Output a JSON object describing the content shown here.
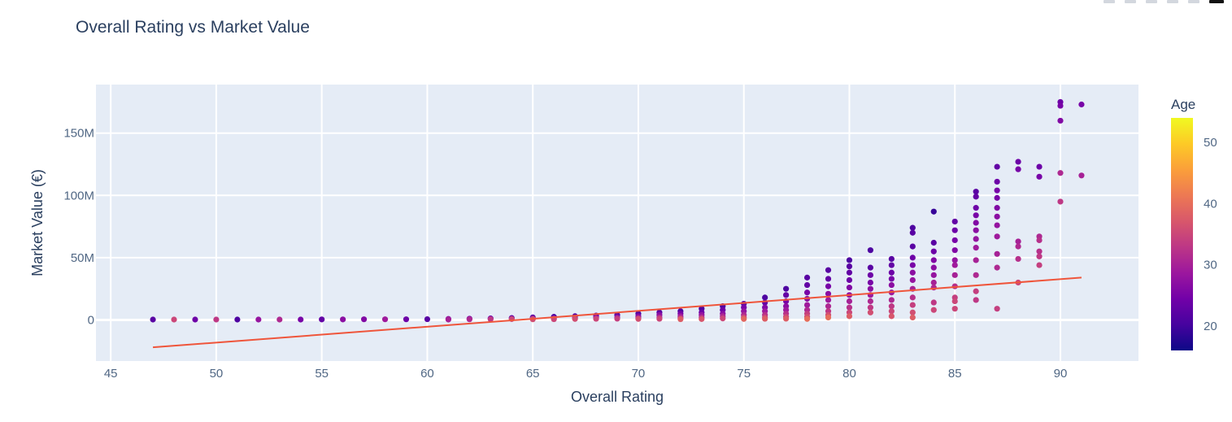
{
  "chart_data": {
    "type": "scatter",
    "title": "Overall Rating vs Market Value",
    "xlabel": "Overall Rating",
    "ylabel": "Market Value (€)",
    "xlim": [
      44.3,
      93.7
    ],
    "ylim": [
      -33000000,
      189000000
    ],
    "x_ticks": [
      45,
      50,
      55,
      60,
      65,
      70,
      75,
      80,
      85,
      90
    ],
    "y_ticks": [
      {
        "value": 0,
        "label": "0"
      },
      {
        "value": 50000000,
        "label": "50M"
      },
      {
        "value": 100000000,
        "label": "100M"
      },
      {
        "value": 150000000,
        "label": "150M"
      }
    ],
    "grid": true,
    "colorscale": {
      "title": "Age",
      "range": [
        16,
        54
      ],
      "ticks": [
        20,
        30,
        40,
        50
      ],
      "stops": [
        "#0d0887",
        "#46039f",
        "#7201a8",
        "#9c179e",
        "#bd3786",
        "#d8576b",
        "#ed7953",
        "#fb9f3a",
        "#fdca26",
        "#f0f921"
      ]
    },
    "trendline": {
      "color": "#ef553b",
      "points": [
        [
          47,
          -22000000
        ],
        [
          91,
          34000000
        ]
      ]
    },
    "points": [
      [
        47,
        300000,
        22
      ],
      [
        48,
        300000,
        35
      ],
      [
        49,
        300000,
        24
      ],
      [
        50,
        300000,
        33
      ],
      [
        51,
        300000,
        21
      ],
      [
        52,
        300000,
        28
      ],
      [
        53,
        300000,
        31
      ],
      [
        54,
        300000,
        25
      ],
      [
        55,
        400000,
        23
      ],
      [
        56,
        400000,
        27
      ],
      [
        57,
        500000,
        26
      ],
      [
        58,
        500000,
        29
      ],
      [
        59,
        500000,
        24
      ],
      [
        60,
        600000,
        22
      ],
      [
        61,
        800000,
        27
      ],
      [
        61,
        300000,
        30
      ],
      [
        62,
        1000000,
        25
      ],
      [
        62,
        500000,
        31
      ],
      [
        63,
        1200000,
        24
      ],
      [
        63,
        600000,
        33
      ],
      [
        64,
        1500000,
        23
      ],
      [
        64,
        700000,
        35
      ],
      [
        65,
        2000000,
        22
      ],
      [
        65,
        1000000,
        31
      ],
      [
        65,
        500000,
        36
      ],
      [
        66,
        2500000,
        21
      ],
      [
        66,
        1200000,
        30
      ],
      [
        66,
        600000,
        35
      ],
      [
        67,
        3000000,
        22
      ],
      [
        67,
        1500000,
        29
      ],
      [
        67,
        800000,
        36
      ],
      [
        68,
        3500000,
        23
      ],
      [
        68,
        1800000,
        28
      ],
      [
        68,
        900000,
        35
      ],
      [
        69,
        4000000,
        22
      ],
      [
        69,
        2000000,
        28
      ],
      [
        69,
        1000000,
        34
      ],
      [
        70,
        5000000,
        21
      ],
      [
        70,
        3000000,
        26
      ],
      [
        70,
        1500000,
        31
      ],
      [
        70,
        800000,
        36
      ],
      [
        71,
        6000000,
        22
      ],
      [
        71,
        4000000,
        27
      ],
      [
        71,
        2000000,
        31
      ],
      [
        71,
        900000,
        35
      ],
      [
        72,
        7000000,
        21
      ],
      [
        72,
        5000000,
        25
      ],
      [
        72,
        3000000,
        29
      ],
      [
        72,
        1500000,
        33
      ],
      [
        72,
        600000,
        38
      ],
      [
        73,
        9000000,
        21
      ],
      [
        73,
        6000000,
        24
      ],
      [
        73,
        4000000,
        28
      ],
      [
        73,
        2000000,
        32
      ],
      [
        73,
        700000,
        37
      ],
      [
        74,
        11000000,
        21
      ],
      [
        74,
        8000000,
        24
      ],
      [
        74,
        5000000,
        27
      ],
      [
        74,
        3000000,
        31
      ],
      [
        74,
        1200000,
        35
      ],
      [
        75,
        13000000,
        22
      ],
      [
        75,
        10000000,
        25
      ],
      [
        75,
        7000000,
        28
      ],
      [
        75,
        4000000,
        31
      ],
      [
        75,
        2000000,
        35
      ],
      [
        75,
        800000,
        39
      ],
      [
        76,
        18000000,
        21
      ],
      [
        76,
        14000000,
        23
      ],
      [
        76,
        10000000,
        26
      ],
      [
        76,
        7000000,
        29
      ],
      [
        76,
        4000000,
        32
      ],
      [
        76,
        2000000,
        35
      ],
      [
        76,
        900000,
        38
      ],
      [
        77,
        25000000,
        21
      ],
      [
        77,
        20000000,
        23
      ],
      [
        77,
        15000000,
        25
      ],
      [
        77,
        11000000,
        27
      ],
      [
        77,
        8000000,
        29
      ],
      [
        77,
        5000000,
        32
      ],
      [
        77,
        2500000,
        35
      ],
      [
        77,
        1000000,
        38
      ],
      [
        78,
        34000000,
        22
      ],
      [
        78,
        28000000,
        23
      ],
      [
        78,
        22000000,
        25
      ],
      [
        78,
        17000000,
        27
      ],
      [
        78,
        12000000,
        29
      ],
      [
        78,
        8000000,
        31
      ],
      [
        78,
        5000000,
        34
      ],
      [
        78,
        2500000,
        36
      ],
      [
        78,
        800000,
        40
      ],
      [
        79,
        40000000,
        22
      ],
      [
        79,
        33000000,
        23
      ],
      [
        79,
        27000000,
        25
      ],
      [
        79,
        21000000,
        27
      ],
      [
        79,
        16000000,
        29
      ],
      [
        79,
        11000000,
        31
      ],
      [
        79,
        7000000,
        33
      ],
      [
        79,
        4000000,
        36
      ],
      [
        79,
        2000000,
        40
      ],
      [
        80,
        48000000,
        21
      ],
      [
        80,
        43000000,
        22
      ],
      [
        80,
        38000000,
        23
      ],
      [
        80,
        32000000,
        24
      ],
      [
        80,
        26000000,
        26
      ],
      [
        80,
        20000000,
        28
      ],
      [
        80,
        15000000,
        30
      ],
      [
        80,
        10000000,
        32
      ],
      [
        80,
        6000000,
        35
      ],
      [
        80,
        3000000,
        38
      ],
      [
        81,
        56000000,
        21
      ],
      [
        81,
        42000000,
        22
      ],
      [
        81,
        36000000,
        24
      ],
      [
        81,
        30000000,
        25
      ],
      [
        81,
        25000000,
        27
      ],
      [
        81,
        20000000,
        29
      ],
      [
        81,
        15000000,
        31
      ],
      [
        81,
        10000000,
        33
      ],
      [
        81,
        6000000,
        36
      ],
      [
        82,
        49000000,
        22
      ],
      [
        82,
        44000000,
        23
      ],
      [
        82,
        38000000,
        24
      ],
      [
        82,
        33000000,
        25
      ],
      [
        82,
        28000000,
        27
      ],
      [
        82,
        22000000,
        29
      ],
      [
        82,
        16000000,
        31
      ],
      [
        82,
        11000000,
        33
      ],
      [
        82,
        7000000,
        35
      ],
      [
        82,
        3000000,
        37
      ],
      [
        83,
        74000000,
        21
      ],
      [
        83,
        70000000,
        22
      ],
      [
        83,
        59000000,
        22
      ],
      [
        83,
        50000000,
        24
      ],
      [
        83,
        44000000,
        25
      ],
      [
        83,
        38000000,
        27
      ],
      [
        83,
        32000000,
        28
      ],
      [
        83,
        25000000,
        30
      ],
      [
        83,
        18000000,
        32
      ],
      [
        83,
        12000000,
        34
      ],
      [
        83,
        6000000,
        36
      ],
      [
        83,
        2000000,
        38
      ],
      [
        84,
        87000000,
        19
      ],
      [
        84,
        62000000,
        22
      ],
      [
        84,
        55000000,
        24
      ],
      [
        84,
        48000000,
        26
      ],
      [
        84,
        42000000,
        27
      ],
      [
        84,
        36000000,
        28
      ],
      [
        84,
        30000000,
        30
      ],
      [
        84,
        26000000,
        31
      ],
      [
        84,
        14000000,
        33
      ],
      [
        84,
        8000000,
        35
      ],
      [
        85,
        79000000,
        23
      ],
      [
        85,
        72000000,
        24
      ],
      [
        85,
        64000000,
        25
      ],
      [
        85,
        56000000,
        26
      ],
      [
        85,
        48000000,
        28
      ],
      [
        85,
        44000000,
        29
      ],
      [
        85,
        36000000,
        30
      ],
      [
        85,
        27000000,
        32
      ],
      [
        85,
        18000000,
        34
      ],
      [
        85,
        15000000,
        35
      ],
      [
        85,
        9000000,
        35
      ],
      [
        86,
        103000000,
        22
      ],
      [
        86,
        99000000,
        23
      ],
      [
        86,
        90000000,
        24
      ],
      [
        86,
        84000000,
        25
      ],
      [
        86,
        78000000,
        26
      ],
      [
        86,
        72000000,
        27
      ],
      [
        86,
        65000000,
        28
      ],
      [
        86,
        58000000,
        29
      ],
      [
        86,
        48000000,
        30
      ],
      [
        86,
        36000000,
        31
      ],
      [
        86,
        23000000,
        34
      ],
      [
        86,
        16000000,
        33
      ],
      [
        87,
        123000000,
        23
      ],
      [
        87,
        111000000,
        24
      ],
      [
        87,
        104000000,
        25
      ],
      [
        87,
        98000000,
        25
      ],
      [
        87,
        90000000,
        26
      ],
      [
        87,
        83000000,
        27
      ],
      [
        87,
        76000000,
        28
      ],
      [
        87,
        67000000,
        29
      ],
      [
        87,
        53000000,
        30
      ],
      [
        87,
        42000000,
        31
      ],
      [
        87,
        9000000,
        34
      ],
      [
        88,
        127000000,
        24
      ],
      [
        88,
        121000000,
        25
      ],
      [
        88,
        63000000,
        30
      ],
      [
        88,
        59000000,
        31
      ],
      [
        88,
        49000000,
        32
      ],
      [
        88,
        30000000,
        35
      ],
      [
        89,
        123000000,
        24
      ],
      [
        89,
        115000000,
        25
      ],
      [
        89,
        67000000,
        31
      ],
      [
        89,
        64000000,
        32
      ],
      [
        89,
        55000000,
        32
      ],
      [
        89,
        51000000,
        33
      ],
      [
        89,
        44000000,
        34
      ],
      [
        90,
        175000000,
        24
      ],
      [
        90,
        172000000,
        25
      ],
      [
        90,
        160000000,
        26
      ],
      [
        90,
        118000000,
        31
      ],
      [
        90,
        95000000,
        33
      ],
      [
        91,
        173000000,
        25
      ],
      [
        91,
        116000000,
        30
      ]
    ]
  }
}
